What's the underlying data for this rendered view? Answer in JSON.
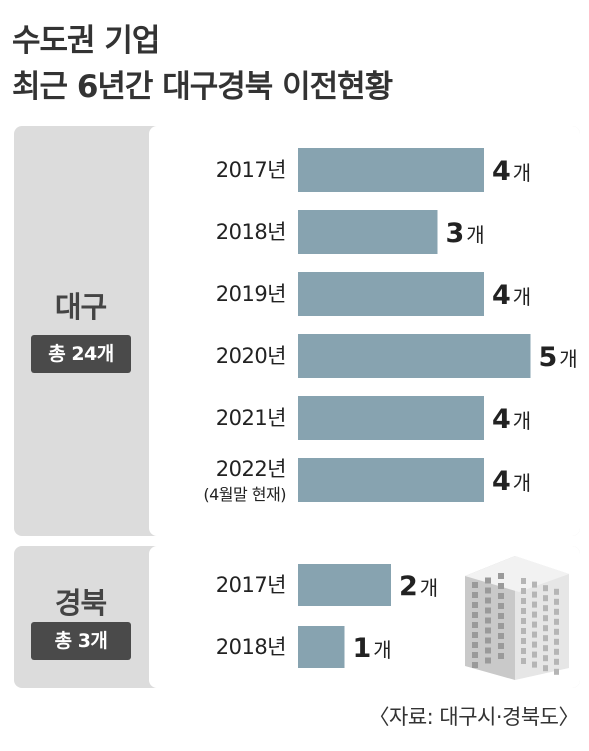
{
  "title": {
    "line1": "수도권 기업",
    "line2": "최근 6년간 대구경북 이전현황"
  },
  "colors": {
    "bar": "#87a3b0",
    "section_bg": "#dcdcdc",
    "badge_bg": "#4a4a4a"
  },
  "sections": [
    {
      "region": "대구",
      "total": "총 24개"
    },
    {
      "region": "경북",
      "total": "총 3개"
    }
  ],
  "source": "〈자료: 대구시·경북도〉",
  "chart_data": [
    {
      "type": "bar",
      "orientation": "horizontal",
      "region": "대구",
      "categories": [
        "2017년",
        "2018년",
        "2019년",
        "2020년",
        "2021년",
        "2022년"
      ],
      "category_notes": [
        "",
        "",
        "",
        "",
        "",
        "(4월말 현재)"
      ],
      "values": [
        4,
        3,
        4,
        5,
        4,
        4
      ],
      "value_labels": [
        "4",
        "3",
        "4",
        "5",
        "4",
        "4"
      ],
      "unit": "개"
    },
    {
      "type": "bar",
      "orientation": "horizontal",
      "region": "경북",
      "categories": [
        "2017년",
        "2018년"
      ],
      "category_notes": [
        "",
        ""
      ],
      "values": [
        2,
        1
      ],
      "value_labels": [
        "2",
        "1"
      ],
      "unit": "개"
    }
  ]
}
